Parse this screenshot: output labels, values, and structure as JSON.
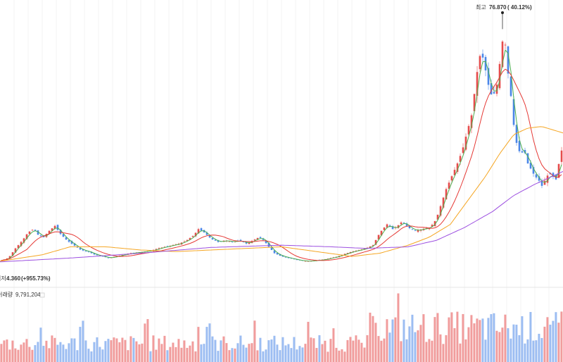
{
  "chart_data": {
    "type": "candlestick",
    "y_unit": "price",
    "price_range": [
      2.5,
      82.0
    ],
    "volume_range": [
      0,
      1300000
    ],
    "up_color": "#e64b4b",
    "down_color": "#4a86e8",
    "ma_colors": {
      "ma5": "#4caf50",
      "ma20": "#e53935",
      "ma60": "#f5a623",
      "ma120": "#9c4fe0"
    },
    "high_marker": {
      "label_prefix": "최고",
      "value": "76.870",
      "pct": "( 40.12%)",
      "price": 76.87
    },
    "low_marker": {
      "label_prefix": "최저",
      "value": "4.360",
      "pct": "(+955.73%)",
      "price": 4.36
    },
    "volume_label": "거래량",
    "volume_value": "9,791,204",
    "series_anchors": [
      [
        0,
        4.6
      ],
      [
        12,
        5.5
      ],
      [
        22,
        8.5
      ],
      [
        32,
        11
      ],
      [
        40,
        13.5
      ],
      [
        48,
        14.5
      ],
      [
        55,
        12.5
      ],
      [
        62,
        12
      ],
      [
        70,
        14
      ],
      [
        78,
        15.5
      ],
      [
        86,
        13
      ],
      [
        95,
        11
      ],
      [
        105,
        9.5
      ],
      [
        115,
        8
      ],
      [
        125,
        7.5
      ],
      [
        135,
        6.5
      ],
      [
        145,
        6
      ],
      [
        155,
        5.5
      ],
      [
        165,
        6
      ],
      [
        175,
        6.5
      ],
      [
        185,
        7
      ],
      [
        195,
        7.2
      ],
      [
        205,
        7.5
      ],
      [
        215,
        7.8
      ],
      [
        225,
        8.5
      ],
      [
        235,
        9
      ],
      [
        245,
        9.5
      ],
      [
        255,
        10
      ],
      [
        265,
        11
      ],
      [
        275,
        12.5
      ],
      [
        282,
        14.5
      ],
      [
        290,
        13.5
      ],
      [
        300,
        11.5
      ],
      [
        310,
        10.5
      ],
      [
        320,
        11
      ],
      [
        330,
        10.5
      ],
      [
        340,
        11
      ],
      [
        350,
        10
      ],
      [
        360,
        11
      ],
      [
        368,
        12
      ],
      [
        375,
        11
      ],
      [
        382,
        9
      ],
      [
        390,
        7
      ],
      [
        400,
        6
      ],
      [
        410,
        5.5
      ],
      [
        420,
        5
      ],
      [
        430,
        4.6
      ],
      [
        440,
        4.5
      ],
      [
        450,
        4.8
      ],
      [
        460,
        5
      ],
      [
        470,
        5.5
      ],
      [
        480,
        6
      ],
      [
        490,
        6.8
      ],
      [
        500,
        7.5
      ],
      [
        510,
        8
      ],
      [
        520,
        8.5
      ],
      [
        530,
        9.5
      ],
      [
        540,
        13.5
      ],
      [
        550,
        16
      ],
      [
        558,
        14.5
      ],
      [
        565,
        15.5
      ],
      [
        572,
        17
      ],
      [
        580,
        15
      ],
      [
        590,
        14
      ],
      [
        600,
        14.5
      ],
      [
        610,
        15
      ],
      [
        617,
        16.5
      ],
      [
        622,
        19
      ],
      [
        628,
        23
      ],
      [
        634,
        27
      ],
      [
        640,
        30
      ],
      [
        646,
        33
      ],
      [
        652,
        36
      ],
      [
        658,
        40
      ],
      [
        664,
        45
      ],
      [
        670,
        50
      ],
      [
        676,
        60
      ],
      [
        680,
        67
      ],
      [
        684,
        70
      ],
      [
        688,
        66
      ],
      [
        692,
        62
      ],
      [
        696,
        57
      ],
      [
        700,
        56
      ],
      [
        705,
        58
      ],
      [
        710,
        66
      ],
      [
        714,
        73
      ],
      [
        718,
        72
      ],
      [
        722,
        63
      ],
      [
        726,
        56
      ],
      [
        730,
        47
      ],
      [
        735,
        40
      ],
      [
        740,
        38
      ],
      [
        745,
        39
      ],
      [
        750,
        35
      ],
      [
        755,
        33
      ],
      [
        760,
        31
      ],
      [
        765,
        30
      ],
      [
        770,
        28
      ],
      [
        775,
        30
      ],
      [
        780,
        32
      ],
      [
        785,
        31
      ],
      [
        790,
        30
      ],
      [
        795,
        36
      ],
      [
        800,
        41
      ]
    ],
    "ma60_anchors": [
      [
        0,
        4.5
      ],
      [
        60,
        6.5
      ],
      [
        100,
        9
      ],
      [
        150,
        9
      ],
      [
        200,
        8
      ],
      [
        250,
        7.5
      ],
      [
        300,
        8
      ],
      [
        350,
        8.5
      ],
      [
        400,
        9
      ],
      [
        450,
        7.5
      ],
      [
        500,
        6
      ],
      [
        540,
        7
      ],
      [
        580,
        9.5
      ],
      [
        610,
        12
      ],
      [
        640,
        16
      ],
      [
        670,
        25
      ],
      [
        690,
        31
      ],
      [
        710,
        38
      ],
      [
        730,
        44
      ],
      [
        750,
        46
      ],
      [
        770,
        46.5
      ],
      [
        800,
        44.5
      ]
    ],
    "ma120_anchors": [
      [
        0,
        4.3
      ],
      [
        100,
        5.5
      ],
      [
        200,
        7
      ],
      [
        300,
        8.8
      ],
      [
        400,
        9.5
      ],
      [
        470,
        9
      ],
      [
        520,
        8.5
      ],
      [
        580,
        9
      ],
      [
        620,
        11
      ],
      [
        660,
        15
      ],
      [
        700,
        20
      ],
      [
        730,
        25
      ],
      [
        760,
        28.5
      ],
      [
        790,
        31.5
      ],
      [
        800,
        32.5
      ]
    ]
  }
}
